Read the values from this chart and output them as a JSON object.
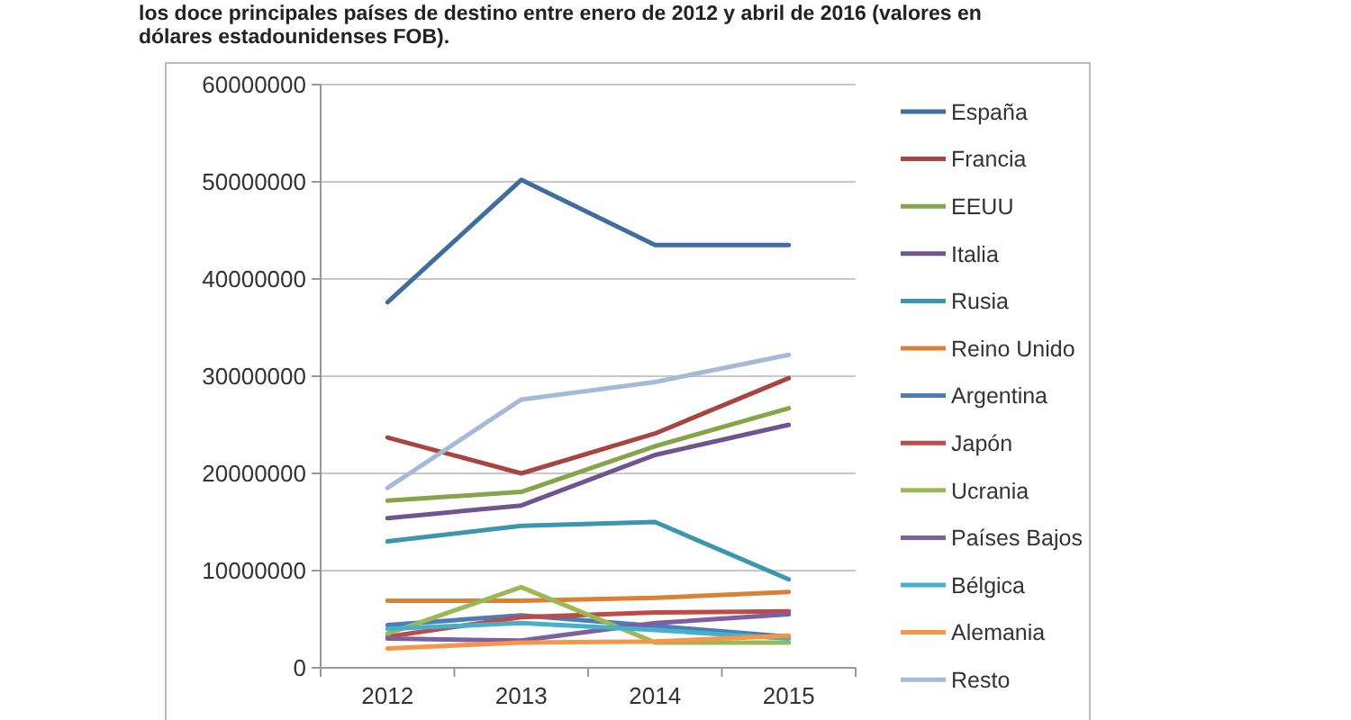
{
  "chart_data": {
    "type": "line",
    "title": "los doce principales países de destino entre enero de 2012 y abril de 2016 (valores en dólares estadounidenses FOB).",
    "categories": [
      "2012",
      "2013",
      "2014",
      "2015"
    ],
    "series": [
      {
        "name": "España",
        "color": "#3f6d9e",
        "values": [
          37600000,
          50200000,
          43500000,
          43500000
        ]
      },
      {
        "name": "Francia",
        "color": "#a84542",
        "values": [
          23700000,
          20000000,
          24100000,
          29800000
        ]
      },
      {
        "name": "EEUU",
        "color": "#86a44a",
        "values": [
          17200000,
          18100000,
          22800000,
          26700000
        ]
      },
      {
        "name": "Italia",
        "color": "#6e5590",
        "values": [
          15400000,
          16700000,
          21900000,
          25000000
        ]
      },
      {
        "name": "Rusia",
        "color": "#3d96ae",
        "values": [
          13000000,
          14600000,
          15000000,
          9100000
        ]
      },
      {
        "name": "Reino Unido",
        "color": "#da8137",
        "values": [
          6900000,
          6900000,
          7200000,
          7800000
        ]
      },
      {
        "name": "Argentina",
        "color": "#4a7ebb",
        "values": [
          4400000,
          5400000,
          4300000,
          3200000
        ]
      },
      {
        "name": "Japón",
        "color": "#be4b48",
        "values": [
          3200000,
          5200000,
          5700000,
          5800000
        ]
      },
      {
        "name": "Ucrania",
        "color": "#98b954",
        "values": [
          3500000,
          8300000,
          2600000,
          2600000
        ]
      },
      {
        "name": "Países Bajos",
        "color": "#7d60a0",
        "values": [
          3000000,
          2800000,
          4600000,
          5500000
        ]
      },
      {
        "name": "Bélgica",
        "color": "#46b0cc",
        "values": [
          4000000,
          4600000,
          3900000,
          3000000
        ]
      },
      {
        "name": "Alemania",
        "color": "#f79646",
        "values": [
          2000000,
          2600000,
          2700000,
          3300000
        ]
      },
      {
        "name": "Resto",
        "color": "#a5b9d9",
        "values": [
          18500000,
          27600000,
          29400000,
          32200000
        ]
      }
    ],
    "ylim": [
      0,
      60000000
    ],
    "yticks": [
      0,
      10000000,
      20000000,
      30000000,
      40000000,
      50000000,
      60000000
    ],
    "grid": "y",
    "legend": "right",
    "marker": "none",
    "line_style": "solid"
  }
}
